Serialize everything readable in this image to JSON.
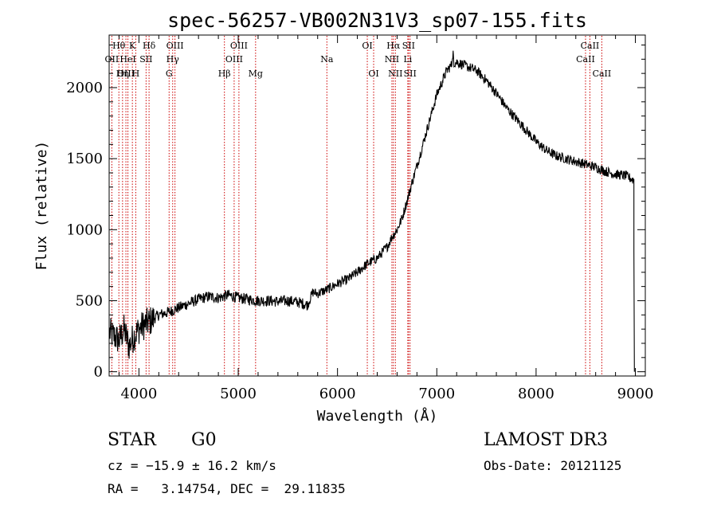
{
  "chart_data": {
    "type": "line",
    "title": "spec-56257-VB002N31V3_sp07-155.fits",
    "xlabel": "Wavelength (Å)",
    "ylabel": "Flux (relative)",
    "xlim": [
      3700,
      9100
    ],
    "ylim": [
      -30,
      2370
    ],
    "xticks": [
      4000,
      5000,
      6000,
      7000,
      8000,
      9000
    ],
    "yticks": [
      0,
      500,
      1000,
      1500,
      2000
    ],
    "series": [
      {
        "name": "flux",
        "x": [
          3700,
          3750,
          3800,
          3850,
          3900,
          3950,
          4000,
          4050,
          4100,
          4200,
          4300,
          4400,
          4500,
          4600,
          4700,
          4800,
          4900,
          5000,
          5100,
          5200,
          5300,
          5400,
          5500,
          5600,
          5700,
          5750,
          5800,
          5900,
          6000,
          6100,
          6200,
          6300,
          6400,
          6500,
          6550,
          6600,
          6650,
          6700,
          6750,
          6800,
          6900,
          7000,
          7100,
          7150,
          7200,
          7300,
          7400,
          7500,
          7600,
          7700,
          7800,
          7900,
          8000,
          8100,
          8200,
          8300,
          8400,
          8500,
          8600,
          8700,
          8800,
          8900,
          8980
        ],
        "y": [
          280,
          250,
          220,
          300,
          180,
          250,
          300,
          330,
          350,
          400,
          420,
          450,
          480,
          510,
          530,
          520,
          540,
          520,
          510,
          500,
          500,
          495,
          500,
          490,
          470,
          560,
          550,
          580,
          620,
          650,
          700,
          760,
          800,
          880,
          950,
          1000,
          1080,
          1200,
          1330,
          1450,
          1700,
          1950,
          2120,
          2160,
          2180,
          2150,
          2120,
          2050,
          1960,
          1860,
          1780,
          1700,
          1620,
          1560,
          1520,
          1500,
          1480,
          1460,
          1440,
          1410,
          1390,
          1380,
          1350
        ]
      }
    ],
    "spectral_lines": [
      {
        "label": "Hθ",
        "x": 3798,
        "row": 1
      },
      {
        "label": "OII",
        "x": 3727,
        "row": 2
      },
      {
        "label": "OIII",
        "x": 3869,
        "row": 3
      },
      {
        "label": "K",
        "x": 3934,
        "row": 1
      },
      {
        "label": "HeI",
        "x": 3889,
        "row": 2
      },
      {
        "label": "Hη",
        "x": 3835,
        "row": 3
      },
      {
        "label": "SII",
        "x": 4072,
        "row": 2
      },
      {
        "label": "H",
        "x": 3968,
        "row": 3
      },
      {
        "label": "Hδ",
        "x": 4102,
        "row": 1
      },
      {
        "label": "OIII",
        "x": 4363,
        "row": 1
      },
      {
        "label": "Hγ",
        "x": 4340,
        "row": 2
      },
      {
        "label": "G",
        "x": 4304,
        "row": 3
      },
      {
        "label": "OIII",
        "x": 5007,
        "row": 1
      },
      {
        "label": "OIII",
        "x": 4959,
        "row": 2
      },
      {
        "label": "Hβ",
        "x": 4861,
        "row": 3
      },
      {
        "label": "Mg",
        "x": 5175,
        "row": 3
      },
      {
        "label": "Na",
        "x": 5893,
        "row": 2
      },
      {
        "label": "OI",
        "x": 6300,
        "row": 1
      },
      {
        "label": "OI",
        "x": 6364,
        "row": 3
      },
      {
        "label": "Hα",
        "x": 6563,
        "row": 1
      },
      {
        "label": "NII",
        "x": 6548,
        "row": 2
      },
      {
        "label": "NII",
        "x": 6583,
        "row": 3
      },
      {
        "label": "SII",
        "x": 6716,
        "row": 1
      },
      {
        "label": "Li",
        "x": 6708,
        "row": 2
      },
      {
        "label": "SII",
        "x": 6731,
        "row": 3
      },
      {
        "label": "CaII",
        "x": 8542,
        "row": 1
      },
      {
        "label": "CaII",
        "x": 8498,
        "row": 2
      },
      {
        "label": "CaII",
        "x": 8662,
        "row": 3
      }
    ]
  },
  "info": {
    "class": "STAR",
    "subclass": "G0",
    "survey": "LAMOST DR3",
    "cz": "cz = −15.9 ± 16.2 km/s",
    "obs_date": "Obs-Date: 20121125",
    "radec": "RA =   3.14754, DEC =  29.11835"
  },
  "colors": {
    "line": "#000000",
    "marker": "#cc0000"
  }
}
